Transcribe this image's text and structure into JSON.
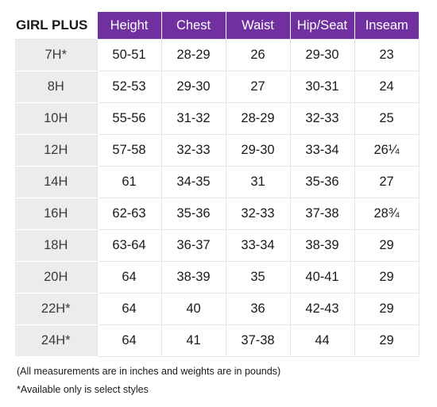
{
  "table": {
    "title": "GIRL PLUS",
    "headers": [
      "Height",
      "Chest",
      "Waist",
      "Hip/Seat",
      "Inseam"
    ],
    "header_color": "#7030a0",
    "size_column_color": "#ececec",
    "rows": [
      {
        "size": "7H*",
        "cells": [
          "50-51",
          "28-29",
          "26",
          "29-30",
          "23"
        ]
      },
      {
        "size": "8H",
        "cells": [
          "52-53",
          "29-30",
          "27",
          "30-31",
          "24"
        ]
      },
      {
        "size": "10H",
        "cells": [
          "55-56",
          "31-32",
          "28-29",
          "32-33",
          "25"
        ]
      },
      {
        "size": "12H",
        "cells": [
          "57-58",
          "32-33",
          "29-30",
          "33-34",
          "26¼"
        ]
      },
      {
        "size": "14H",
        "cells": [
          "61",
          "34-35",
          "31",
          "35-36",
          "27"
        ]
      },
      {
        "size": "16H",
        "cells": [
          "62-63",
          "35-36",
          "32-33",
          "37-38",
          "28¾"
        ]
      },
      {
        "size": "18H",
        "cells": [
          "63-64",
          "36-37",
          "33-34",
          "38-39",
          "29"
        ]
      },
      {
        "size": "20H",
        "cells": [
          "64",
          "38-39",
          "35",
          "40-41",
          "29"
        ]
      },
      {
        "size": "22H*",
        "cells": [
          "64",
          "40",
          "36",
          "42-43",
          "29"
        ]
      },
      {
        "size": "24H*",
        "cells": [
          "64",
          "41",
          "37-38",
          "44",
          "29"
        ]
      }
    ]
  },
  "notes": {
    "measurements": "(All measurements are in inches and weights are in pounds)",
    "availability": "*Available only is select styles"
  }
}
